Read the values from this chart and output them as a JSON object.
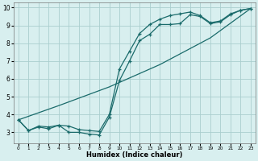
{
  "line1_x": [
    0,
    1,
    2,
    3,
    4,
    5,
    6,
    7,
    8,
    9,
    10,
    11,
    12,
    13,
    14,
    15,
    16,
    17,
    18,
    19,
    20,
    21,
    22,
    23
  ],
  "line1_y": [
    3.7,
    3.1,
    3.3,
    3.2,
    3.4,
    3.0,
    3.0,
    2.9,
    2.85,
    3.85,
    5.9,
    7.0,
    8.15,
    8.5,
    9.05,
    9.05,
    9.1,
    9.6,
    9.5,
    9.1,
    9.2,
    9.6,
    9.85,
    9.95
  ],
  "line2_x": [
    0,
    1,
    2,
    3,
    4,
    5,
    6,
    7,
    8,
    9,
    10,
    11,
    12,
    13,
    14,
    15,
    16,
    17,
    18,
    19,
    20,
    21,
    22,
    23
  ],
  "line2_y": [
    3.7,
    3.1,
    3.35,
    3.3,
    3.4,
    3.35,
    3.15,
    3.1,
    3.05,
    4.0,
    6.55,
    7.55,
    8.55,
    9.05,
    9.35,
    9.55,
    9.65,
    9.75,
    9.55,
    9.15,
    9.25,
    9.65,
    9.85,
    9.95
  ],
  "line3_x": [
    0,
    4,
    9,
    14,
    19,
    23
  ],
  "line3_y": [
    3.7,
    4.5,
    5.55,
    6.8,
    8.3,
    9.95
  ],
  "line_color": "#1a6b6b",
  "bg_color": "#d8efef",
  "grid_color": "#aacece",
  "xlabel": "Humidex (Indice chaleur)",
  "xlim": [
    -0.5,
    23.5
  ],
  "ylim": [
    2.4,
    10.3
  ],
  "yticks": [
    3,
    4,
    5,
    6,
    7,
    8,
    9,
    10
  ],
  "xticks": [
    0,
    1,
    2,
    3,
    4,
    5,
    6,
    7,
    8,
    9,
    10,
    11,
    12,
    13,
    14,
    15,
    16,
    17,
    18,
    19,
    20,
    21,
    22,
    23
  ]
}
